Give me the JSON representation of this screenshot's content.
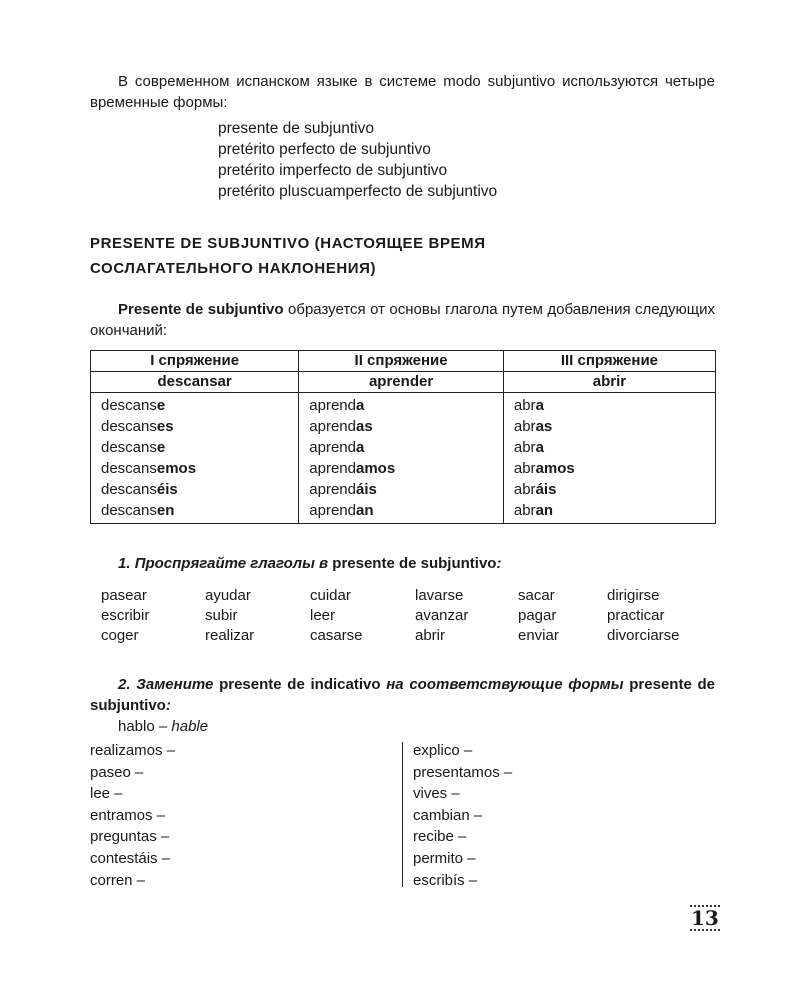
{
  "intro": "В современном испанском языке в системе modo subjuntivo используются четыре временные формы:",
  "tenses": [
    "presente de subjuntivo",
    "pretérito perfecto de subjuntivo",
    "pretérito imperfecto de subjuntivo",
    "pretérito pluscuamperfecto de subjuntivo"
  ],
  "heading": [
    "PRESENTE DE SUBJUNTIVO (НАСТОЯЩЕЕ ВРЕМЯ",
    "СОСЛАГАТЕЛЬНОГО НАКЛОНЕНИЯ)"
  ],
  "formation": {
    "bold": "Presente de subjuntivo",
    "rest": " образуется от основы глагола путем добавления следующих окончаний:"
  },
  "table": {
    "headers": [
      "I спряжение",
      "II спряжение",
      "III спряжение"
    ],
    "verbs": [
      "descansar",
      "aprender",
      "abrir"
    ],
    "rows": [
      [
        [
          "descans",
          "e"
        ],
        [
          "aprend",
          "a"
        ],
        [
          "abr",
          "a"
        ]
      ],
      [
        [
          "descans",
          "es"
        ],
        [
          "aprend",
          "as"
        ],
        [
          "abr",
          "as"
        ]
      ],
      [
        [
          "descans",
          "e"
        ],
        [
          "aprend",
          "a"
        ],
        [
          "abr",
          "a"
        ]
      ],
      [
        [
          "descans",
          "emos"
        ],
        [
          "aprend",
          "amos"
        ],
        [
          "abr",
          "amos"
        ]
      ],
      [
        [
          "descans",
          "éis"
        ],
        [
          "aprend",
          "áis"
        ],
        [
          "abr",
          "áis"
        ]
      ],
      [
        [
          "descans",
          "en"
        ],
        [
          "aprend",
          "an"
        ],
        [
          "abr",
          "an"
        ]
      ]
    ]
  },
  "ex1": {
    "num": "1.",
    "italic": "Проспрягайте глаголы в",
    "bold": " presente de subjuntivo",
    "end": ":",
    "verbs": [
      "pasear",
      "ayudar",
      "cuidar",
      "lavarse",
      "sacar",
      "dirigirse",
      "escribir",
      "subir",
      "leer",
      "avanzar",
      "pagar",
      "practicar",
      "coger",
      "realizar",
      "casarse",
      "abrir",
      "enviar",
      "divorciarse"
    ]
  },
  "ex2": {
    "num": "2.",
    "italic1": "Замените",
    "bold1": " presente de indicativo ",
    "italic2": "на соответствующие формы",
    "bold2": " presente de subjuntivo",
    "end": ":",
    "example": {
      "word": "hablo – ",
      "answer": "hable"
    },
    "left": [
      "realizamos –",
      "paseo –",
      "lee –",
      "entramos –",
      "preguntas –",
      "contestáis –",
      "corren –"
    ],
    "right": [
      "explico –",
      "presentamos –",
      "vives –",
      "cambian –",
      "recibe –",
      "permito –",
      "escribís –"
    ]
  },
  "page_number": "13"
}
